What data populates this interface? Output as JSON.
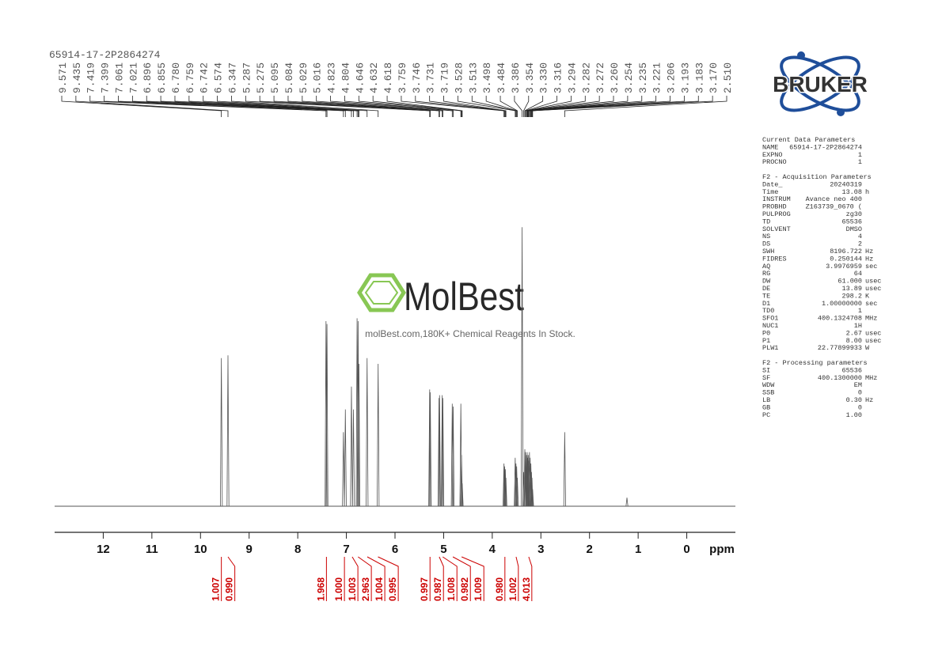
{
  "chart_data": {
    "type": "spectrum",
    "title": "65914-17-2P2864274",
    "xlabel": "ppm",
    "xlim": [
      13,
      -1
    ],
    "xticks": [
      12,
      11,
      10,
      9,
      8,
      7,
      6,
      5,
      4,
      3,
      2,
      1,
      0
    ],
    "ylim": [
      0,
      100
    ],
    "color": "#555555",
    "peak_labels": [
      9.571,
      9.435,
      7.419,
      7.399,
      7.061,
      7.021,
      6.896,
      6.855,
      {
        "value": 6.78,
        "label": "6.780"
      },
      6.759,
      6.742,
      6.574,
      6.347,
      5.287,
      5.275,
      5.095,
      5.084,
      5.029,
      5.016,
      4.823,
      4.804,
      4.646,
      4.632,
      4.618,
      3.759,
      3.746,
      3.731,
      3.719,
      3.528,
      3.513,
      3.498,
      3.484,
      3.386,
      3.354,
      {
        "value": 3.33,
        "label": "3.330"
      },
      3.316,
      3.294,
      3.282,
      3.272,
      {
        "value": 3.26,
        "label": "3.260"
      },
      3.254,
      3.235,
      3.221,
      3.206,
      3.193,
      3.183,
      {
        "value": 3.17,
        "label": "3.170"
      },
      {
        "value": 2.51,
        "label": "2.510"
      }
    ],
    "peaks": {
      "x": [
        9.571,
        9.435,
        7.419,
        7.399,
        7.061,
        7.021,
        6.896,
        6.855,
        6.78,
        6.759,
        6.742,
        6.574,
        6.347,
        5.287,
        5.275,
        5.095,
        5.084,
        5.029,
        5.016,
        4.823,
        4.804,
        4.646,
        4.632,
        4.618,
        3.759,
        3.746,
        3.731,
        3.719,
        3.528,
        3.513,
        3.498,
        3.484,
        3.386,
        3.354,
        3.33,
        3.316,
        3.294,
        3.282,
        3.272,
        3.26,
        3.254,
        3.235,
        3.221,
        3.206,
        3.193,
        3.183,
        3.17,
        2.51,
        1.23
      ],
      "values": [
        52,
        53,
        65,
        64,
        26,
        34,
        42,
        34,
        66,
        65,
        50,
        52,
        50,
        41,
        40,
        38,
        39,
        39,
        38,
        36,
        35,
        36,
        18,
        8,
        15,
        14,
        13,
        10,
        17,
        15,
        14,
        10,
        98,
        12,
        20,
        19,
        18,
        19,
        17,
        18,
        16,
        19,
        17,
        15,
        12,
        10,
        6,
        26,
        3
      ]
    },
    "integrals": {
      "color": "#cc0000",
      "x": [
        9.571,
        9.435,
        7.41,
        7.04,
        6.88,
        6.76,
        6.57,
        6.35,
        5.28,
        5.09,
        5.02,
        4.81,
        4.63,
        3.74,
        3.51,
        3.25
      ],
      "values": [
        1.007,
        0.99,
        1.968,
        {
          "value": 1,
          "label": "1.000"
        },
        1.003,
        2.963,
        1.004,
        0.995,
        0.997,
        0.987,
        1.008,
        0.982,
        1.009,
        0.98,
        1.002,
        4.013
      ],
      "value_labels": [
        "1.007",
        "0.990",
        "1.968",
        "1.000",
        "1.003",
        "2.963",
        "1.004",
        "0.995",
        "0.997",
        "0.987",
        "1.008",
        "0.982",
        "1.009",
        "0.980",
        "1.002",
        "4.013"
      ]
    }
  },
  "watermark": {
    "brand": "MolBest",
    "tagline": "molBest.com,180K+ Chemical Reagents In Stock."
  },
  "logo": "BRUKER",
  "parameters": [
    {
      "title": "Current Data Parameters",
      "rows": [
        [
          "NAME",
          "65914-17-2P2864274"
        ],
        [
          "EXPNO",
          "1"
        ],
        [
          "PROCNO",
          "1"
        ]
      ]
    },
    {
      "title": "F2 - Acquisition Parameters",
      "rows": [
        [
          "Date_",
          "20240319"
        ],
        [
          "Time",
          "13.08",
          "h"
        ],
        [
          "INSTRUM",
          "Avance neo 400"
        ],
        [
          "PROBHD",
          "Z163739_0670 ("
        ],
        [
          "PULPROG",
          "zg30"
        ],
        [
          "TD",
          "65536"
        ],
        [
          "SOLVENT",
          "DMSO"
        ],
        [
          "NS",
          "4"
        ],
        [
          "DS",
          "2"
        ],
        [
          "SWH",
          "8196.722",
          "Hz"
        ],
        [
          "FIDRES",
          "0.250144",
          "Hz"
        ],
        [
          "AQ",
          "3.9976959",
          "sec"
        ],
        [
          "RG",
          "64"
        ],
        [
          "DW",
          "61.000",
          "usec"
        ],
        [
          "DE",
          "13.89",
          "usec"
        ],
        [
          "TE",
          "298.2",
          "K"
        ],
        [
          "D1",
          "1.00000000",
          "sec"
        ],
        [
          "TD0",
          "1"
        ],
        [
          "SFO1",
          "400.1324708",
          "MHz"
        ],
        [
          "NUC1",
          "1H"
        ],
        [
          "P0",
          "2.67",
          "usec"
        ],
        [
          "P1",
          "8.00",
          "usec"
        ],
        [
          "PLW1",
          "22.77899933",
          "W"
        ]
      ]
    },
    {
      "title": "F2 - Processing parameters",
      "rows": [
        [
          "SI",
          "65536"
        ],
        [
          "SF",
          "400.1300000",
          "MHz"
        ],
        [
          "WDW",
          "EM"
        ],
        [
          "SSB",
          "0"
        ],
        [
          "LB",
          "0.30",
          "Hz"
        ],
        [
          "GB",
          "0"
        ],
        [
          "PC",
          "1.00"
        ]
      ]
    }
  ]
}
